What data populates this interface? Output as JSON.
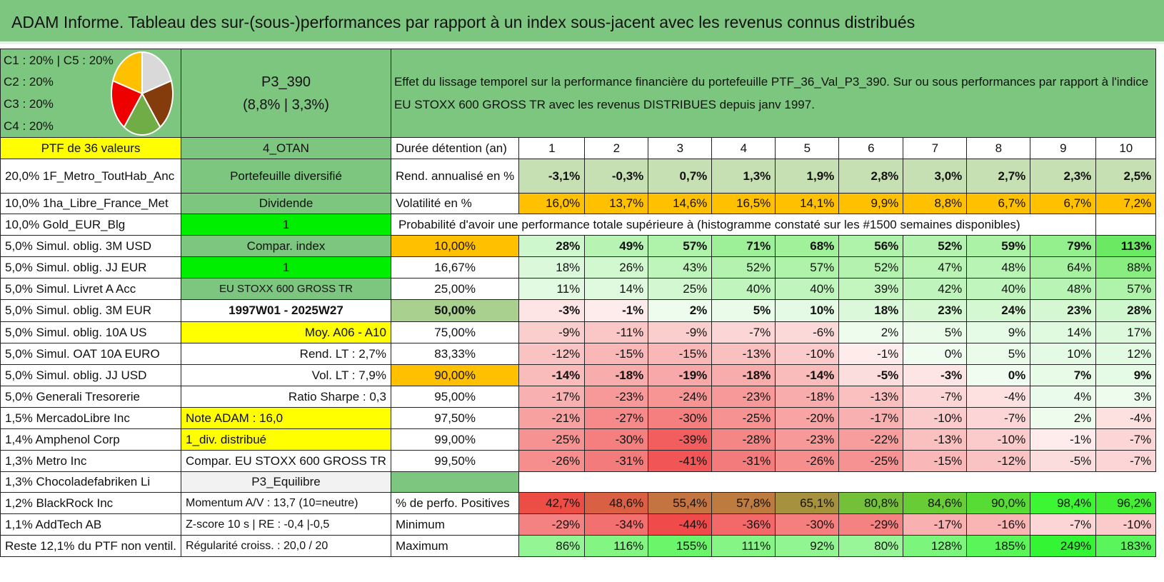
{
  "title": "ADAM Informe. Tableau des sur-(sous-)performances par rapport à un index sous-jacent avec les revenus connus distribués",
  "allocation": {
    "line1": "C1 : 20% | C5 : 20%",
    "line2": "C2 : 20%",
    "line3": "C3 : 20%",
    "line4": "C4 : 20%"
  },
  "pie": {
    "slices": [
      {
        "name": "C1",
        "value": 20,
        "color": "#d9d9d9"
      },
      {
        "name": "C2",
        "value": 20,
        "color": "#843c0c"
      },
      {
        "name": "C3",
        "value": 20,
        "color": "#70ad47"
      },
      {
        "name": "C4",
        "value": 20,
        "color": "#ee0000"
      },
      {
        "name": "C5",
        "value": 20,
        "color": "#ffc000"
      }
    ]
  },
  "portfolio": {
    "name": "P3_390",
    "perf": "(8,8% | 3,3%)"
  },
  "description": "Effet du lissage temporel sur la performance financière du portefeuille PTF_36_Val_P3_390. Sur ou sous performances par rapport à l'indice EU STOXX 600 GROSS TR avec les revenus DISTRIBUES depuis janv 1997.",
  "ptf_label": "PTF de 36 valeurs",
  "otan": "4_OTAN",
  "duree_label": "Durée détention (an)",
  "years": [
    "1",
    "2",
    "3",
    "4",
    "5",
    "6",
    "7",
    "8",
    "9",
    "10"
  ],
  "rend_label": "Rend. annualisé en %",
  "rend": [
    "-3,1%",
    "-0,3%",
    "0,7%",
    "1,3%",
    "1,9%",
    "2,8%",
    "3,0%",
    "2,7%",
    "2,3%",
    "2,5%"
  ],
  "vol_label": "Volatilité en %",
  "vol": [
    "16,0%",
    "13,7%",
    "14,6%",
    "16,5%",
    "14,1%",
    "9,9%",
    "8,8%",
    "6,7%",
    "6,7%",
    "7,2%"
  ],
  "prob_header": "Probabilité d'avoir une performance totale supérieure à (histogramme constaté sur les #1500 semaines disponibles)",
  "holdings": [
    "20,0% 1F_Metro_ToutHab_Anc",
    "10,0% 1ha_Libre_France_Met",
    "10,0% Gold_EUR_Blg",
    "5,0% Simul. oblig. 3M USD",
    "5,0% Simul. oblig. JJ EUR",
    "5,0% Simul. Livret A Acc",
    "5,0% Simul. oblig. 3M EUR",
    "5,0% Simul. oblig. 10A US",
    "5,0% Simul. OAT 10A EURO",
    "5,0% Simul. oblig. JJ USD",
    "5,0% Generali Tresorerie",
    "1,5% MercadoLibre Inc",
    "1,4% Amphenol Corp",
    "1,3% Metro Inc",
    "1,3% Chocoladefabriken Li",
    "1,2% BlackRock Inc",
    "1,1% AddTech AB",
    "Reste 12,1% du PTF non ventil."
  ],
  "info": {
    "diversifie": "Portefeuille diversifié",
    "dividende": "Dividende",
    "one_a": "1",
    "compar_index": "Compar. index",
    "one_b": "1",
    "index_name": "EU STOXX 600 GROSS TR",
    "period": "1997W01 - 2025W27",
    "moy": "Moy. A06 - A10",
    "rend_lt": "Rend. LT : 2,7%",
    "vol_lt": "Vol. LT : 7,9%",
    "sharpe": "Ratio Sharpe : 0,3",
    "note": "Note ADAM : 16,0",
    "div": "1_div. distribué",
    "compar_long": "Compar. EU STOXX 600 GROSS TR",
    "equilibre": "P3_Equilibre",
    "momentum": "Momentum A/V : 13,7 (10=neutre)",
    "zscore": "Z-score 10 s | RE : -0,4 |-0,5",
    "regularite": "Régularité croiss. : 20,0 / 20"
  },
  "prob_rows": [
    {
      "pct": "10,00%",
      "vals": [
        "28%",
        "49%",
        "57%",
        "71%",
        "68%",
        "56%",
        "52%",
        "59%",
        "79%",
        "113%"
      ]
    },
    {
      "pct": "16,67%",
      "vals": [
        "18%",
        "26%",
        "43%",
        "52%",
        "57%",
        "52%",
        "47%",
        "48%",
        "64%",
        "88%"
      ]
    },
    {
      "pct": "25,00%",
      "vals": [
        "11%",
        "14%",
        "25%",
        "40%",
        "40%",
        "39%",
        "42%",
        "40%",
        "48%",
        "57%"
      ]
    },
    {
      "pct": "50,00%",
      "vals": [
        "-3%",
        "-1%",
        "2%",
        "5%",
        "10%",
        "18%",
        "23%",
        "24%",
        "23%",
        "28%"
      ]
    },
    {
      "pct": "75,00%",
      "vals": [
        "-9%",
        "-11%",
        "-9%",
        "-7%",
        "-6%",
        "2%",
        "5%",
        "9%",
        "14%",
        "17%"
      ]
    },
    {
      "pct": "83,33%",
      "vals": [
        "-12%",
        "-15%",
        "-15%",
        "-13%",
        "-10%",
        "-1%",
        "0%",
        "5%",
        "10%",
        "12%"
      ]
    },
    {
      "pct": "90,00%",
      "vals": [
        "-14%",
        "-18%",
        "-19%",
        "-18%",
        "-14%",
        "-5%",
        "-3%",
        "0%",
        "7%",
        "9%"
      ]
    },
    {
      "pct": "95,00%",
      "vals": [
        "-17%",
        "-23%",
        "-24%",
        "-23%",
        "-18%",
        "-13%",
        "-7%",
        "-4%",
        "4%",
        "3%"
      ]
    },
    {
      "pct": "97,50%",
      "vals": [
        "-21%",
        "-27%",
        "-30%",
        "-25%",
        "-20%",
        "-17%",
        "-10%",
        "-7%",
        "2%",
        "-4%"
      ]
    },
    {
      "pct": "99,00%",
      "vals": [
        "-25%",
        "-30%",
        "-39%",
        "-28%",
        "-23%",
        "-22%",
        "-13%",
        "-10%",
        "-1%",
        "-7%"
      ]
    },
    {
      "pct": "99,50%",
      "vals": [
        "-26%",
        "-31%",
        "-41%",
        "-31%",
        "-26%",
        "-25%",
        "-15%",
        "-12%",
        "-5%",
        "-7%"
      ]
    }
  ],
  "pos_label": "% de perfo. Positives",
  "pos": [
    "42,7%",
    "48,6%",
    "55,4%",
    "57,8%",
    "65,1%",
    "80,8%",
    "84,6%",
    "90,0%",
    "98,4%",
    "96,2%"
  ],
  "min_label": "Minimum",
  "min": [
    "-29%",
    "-34%",
    "-44%",
    "-36%",
    "-30%",
    "-29%",
    "-17%",
    "-16%",
    "-7%",
    "-10%"
  ],
  "max_label": "Maximum",
  "max": [
    "86%",
    "116%",
    "155%",
    "111%",
    "92%",
    "80%",
    "128%",
    "185%",
    "249%",
    "183%"
  ]
}
